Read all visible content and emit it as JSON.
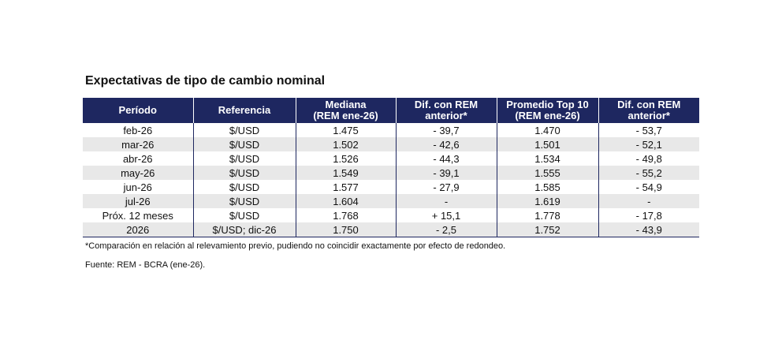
{
  "title": "Expectativas de tipo de cambio nominal",
  "table": {
    "headers": [
      {
        "line1": "Período",
        "line2": ""
      },
      {
        "line1": "Referencia",
        "line2": ""
      },
      {
        "line1": "Mediana",
        "line2": "(REM ene-26)"
      },
      {
        "line1": "Dif. con REM",
        "line2": "anterior*"
      },
      {
        "line1": "Promedio Top 10",
        "line2": "(REM ene-26)"
      },
      {
        "line1": "Dif. con REM",
        "line2": "anterior*"
      }
    ],
    "rows": [
      [
        "feb-26",
        "$/USD",
        "1.475",
        "- 39,7",
        "1.470",
        "- 53,7"
      ],
      [
        "mar-26",
        "$/USD",
        "1.502",
        "- 42,6",
        "1.501",
        "- 52,1"
      ],
      [
        "abr-26",
        "$/USD",
        "1.526",
        "- 44,3",
        "1.534",
        "- 49,8"
      ],
      [
        "may-26",
        "$/USD",
        "1.549",
        "- 39,1",
        "1.555",
        "- 55,2"
      ],
      [
        "jun-26",
        "$/USD",
        "1.577",
        "- 27,9",
        "1.585",
        "- 54,9"
      ],
      [
        "jul-26",
        "$/USD",
        "1.604",
        "-",
        "1.619",
        "-"
      ],
      [
        "Próx. 12 meses",
        "$/USD",
        "1.768",
        "+ 15,1",
        "1.778",
        "- 17,8"
      ],
      [
        "2026",
        "$/USD; dic-26",
        "1.750",
        "- 2,5",
        "1.752",
        "- 43,9"
      ]
    ]
  },
  "footnote": "*Comparación en relación al relevamiento previo, pudiendo no coincidir exactamente por efecto de redondeo.",
  "source": "Fuente: REM - BCRA (ene-26).",
  "colors": {
    "header_bg": "#1e2760",
    "stripe": "#e8e8e8"
  }
}
